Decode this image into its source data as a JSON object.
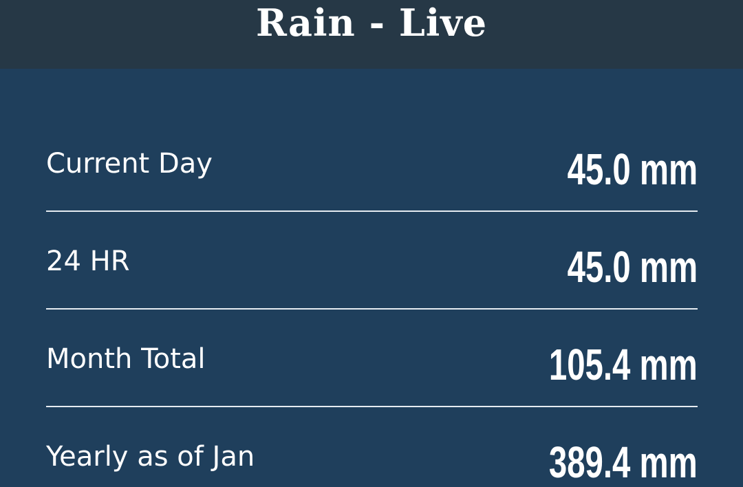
{
  "header": {
    "title": "Rain - Live"
  },
  "rows": [
    {
      "label": "Current Day",
      "value": "45.0 mm"
    },
    {
      "label": "24 HR",
      "value": "45.0 mm"
    },
    {
      "label": "Month Total",
      "value": "105.4 mm"
    },
    {
      "label": "Yearly as of Jan",
      "value": "389.4 mm"
    }
  ],
  "colors": {
    "header_bg": "#263846",
    "panel_bg": "#1f3f5c",
    "text": "#ffffff",
    "divider": "#e6ecf1"
  }
}
